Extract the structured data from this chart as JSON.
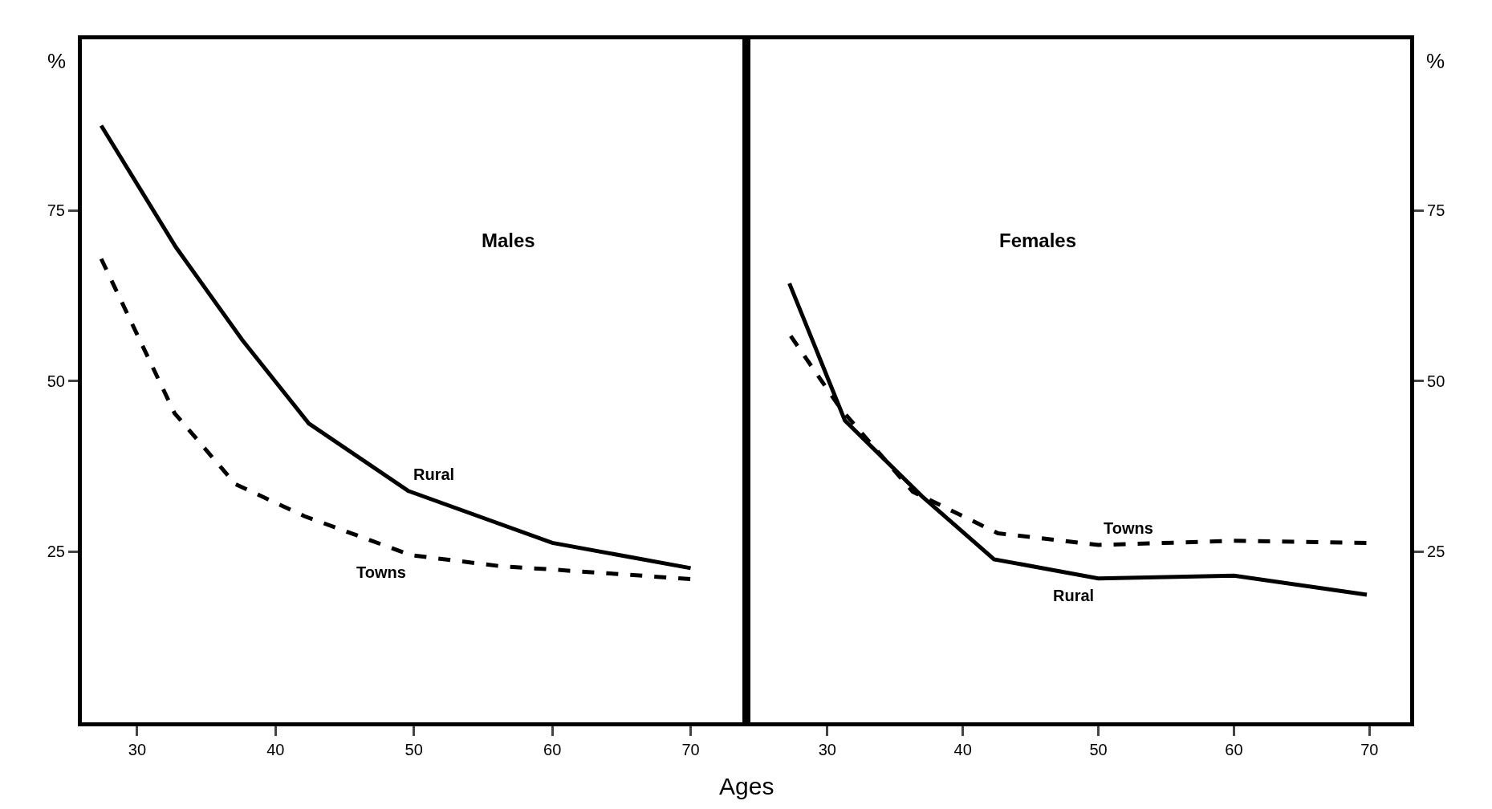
{
  "chart_data": [
    {
      "type": "line",
      "title": "Males",
      "xlabel": "Ages",
      "ylabel": "%",
      "xlim": [
        26,
        74
      ],
      "xticks": [
        30,
        40,
        50,
        60,
        70
      ],
      "ylim": [
        0,
        100
      ],
      "yticks": [
        25,
        50,
        75
      ],
      "grid": false,
      "series": [
        {
          "name": "Rural",
          "color": "#000000",
          "line_style": "solid",
          "x": [
            27.4,
            32.8,
            37.6,
            42.4,
            49.6,
            60,
            70
          ],
          "values": [
            87.4,
            69.6,
            56,
            43.8,
            33.9,
            26.3,
            22.6
          ]
        },
        {
          "name": "Towns",
          "color": "#000000",
          "line_style": "dashed",
          "x": [
            27.4,
            32.7,
            37.1,
            42.1,
            49.8,
            56.2,
            60,
            70
          ],
          "values": [
            67.9,
            45.3,
            34.9,
            30.2,
            24.5,
            22.9,
            22.4,
            21
          ]
        }
      ]
    },
    {
      "type": "line",
      "title": "Females",
      "ylabel": "%",
      "xlim": [
        24,
        73
      ],
      "xticks": [
        30,
        40,
        50,
        60,
        70
      ],
      "ylim": [
        0,
        100
      ],
      "yticks": [
        25,
        50,
        75
      ],
      "grid": false,
      "series": [
        {
          "name": "Rural",
          "color": "#000000",
          "line_style": "solid",
          "x": [
            27.2,
            31.3,
            37,
            42.3,
            50,
            60,
            69.8
          ],
          "values": [
            64.3,
            44.2,
            33.1,
            23.9,
            21.1,
            21.5,
            18.7
          ]
        },
        {
          "name": "Towns",
          "color": "#000000",
          "line_style": "dashed",
          "x": [
            27.3,
            31,
            36.3,
            42.6,
            50,
            60,
            69.8
          ],
          "values": [
            56.6,
            45.9,
            33.8,
            27.7,
            26,
            26.6,
            26.3
          ]
        }
      ]
    }
  ]
}
